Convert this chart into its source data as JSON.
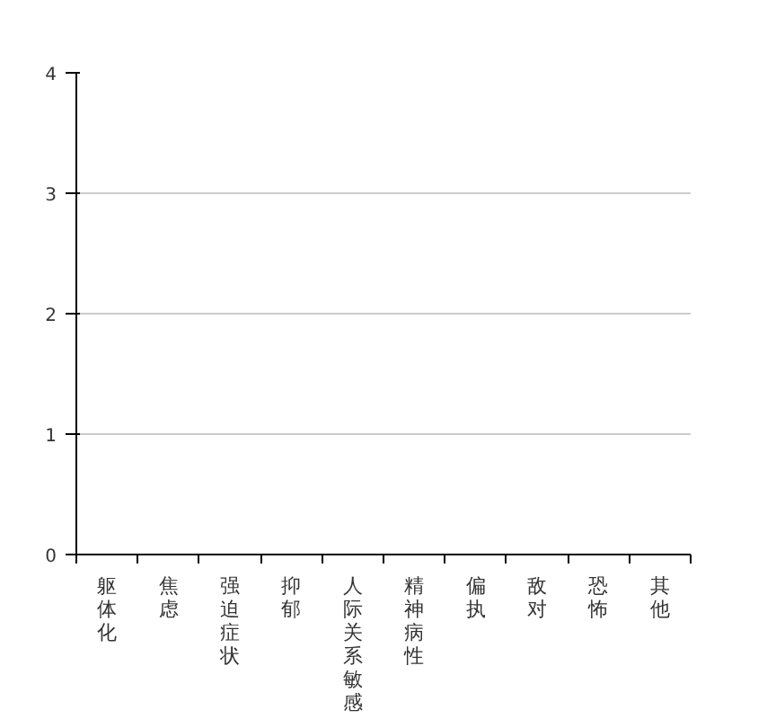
{
  "chart_data": {
    "type": "bar",
    "categories": [
      "躯体化",
      "焦虑",
      "强迫症状",
      "抑郁",
      "人际关系敏感",
      "精神病性",
      "偏执",
      "敌对",
      "恐怖",
      "其他"
    ],
    "values": [
      null,
      null,
      null,
      null,
      null,
      null,
      null,
      null,
      null,
      null
    ],
    "ylim": [
      0,
      4
    ],
    "yticks": [
      0,
      1,
      2,
      3,
      4
    ],
    "grid": "y"
  }
}
